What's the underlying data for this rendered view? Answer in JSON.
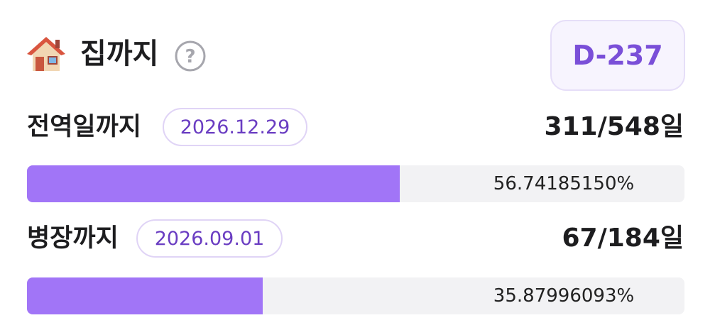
{
  "header": {
    "title": "집까지",
    "help_icon": "?",
    "badge": "D-237"
  },
  "rows": [
    {
      "label": "전역일까지",
      "date": "2026.12.29",
      "count": "311/548일",
      "progress": {
        "value": 56.7418515,
        "label": "56.74185150%"
      },
      "xlim": [
        0,
        100
      ]
    },
    {
      "label": "병장까지",
      "date": "2026.09.01",
      "count": "67/184일",
      "progress": {
        "value": 35.87996093,
        "label": "35.87996093%"
      },
      "xlim": [
        0,
        100
      ]
    }
  ]
}
